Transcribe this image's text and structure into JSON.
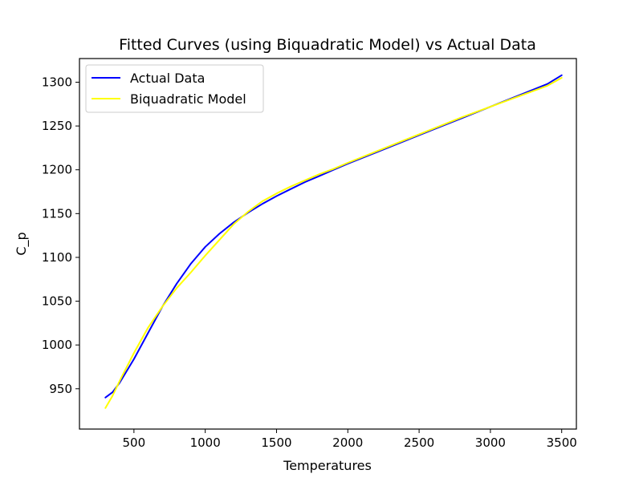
{
  "chart_data": {
    "type": "line",
    "title": "Fitted Curves (using Biquadratic Model) vs Actual Data",
    "xlabel": "Temperatures",
    "ylabel": "C_p",
    "xlim": [
      118,
      3603
    ],
    "ylim": [
      904,
      1327
    ],
    "x_ticks": [
      500,
      1000,
      1500,
      2000,
      2500,
      3000,
      3500
    ],
    "x_tick_labels": [
      "500",
      "1000",
      "1500",
      "2000",
      "2500",
      "3000",
      "3500"
    ],
    "y_ticks": [
      950,
      1000,
      1050,
      1100,
      1150,
      1200,
      1250,
      1300
    ],
    "y_tick_labels": [
      "950",
      "1000",
      "1050",
      "1100",
      "1150",
      "1200",
      "1250",
      "1300"
    ],
    "grid": false,
    "legend_position": "upper-left",
    "series": [
      {
        "name": "Actual Data",
        "color": "#0000ff",
        "x": [
          300,
          350,
          400,
          500,
          600,
          700,
          800,
          900,
          1000,
          1100,
          1200,
          1300,
          1400,
          1500,
          1600,
          1700,
          1800,
          1900,
          2000,
          2200,
          2400,
          2600,
          2800,
          3000,
          3200,
          3400,
          3500
        ],
        "y": [
          940,
          946,
          957,
          984,
          1014,
          1044,
          1070,
          1093,
          1112,
          1127,
          1140,
          1151,
          1161,
          1170,
          1178,
          1186,
          1193,
          1200,
          1207,
          1220,
          1233,
          1246,
          1259,
          1272,
          1285,
          1298,
          1308
        ]
      },
      {
        "name": "Biquadratic Model",
        "color": "#ffff00",
        "x": [
          300,
          350,
          400,
          500,
          600,
          700,
          800,
          900,
          1000,
          1100,
          1200,
          1300,
          1400,
          1500,
          1600,
          1700,
          1800,
          1900,
          2000,
          2200,
          2400,
          2600,
          2800,
          3000,
          3200,
          3400,
          3500
        ],
        "y": [
          928,
          942,
          959,
          991,
          1020,
          1044,
          1065,
          1083,
          1102,
          1120,
          1138,
          1152,
          1164,
          1173,
          1181,
          1188,
          1195,
          1201,
          1208,
          1221,
          1234,
          1247,
          1260,
          1272,
          1284,
          1296,
          1305
        ]
      }
    ]
  }
}
